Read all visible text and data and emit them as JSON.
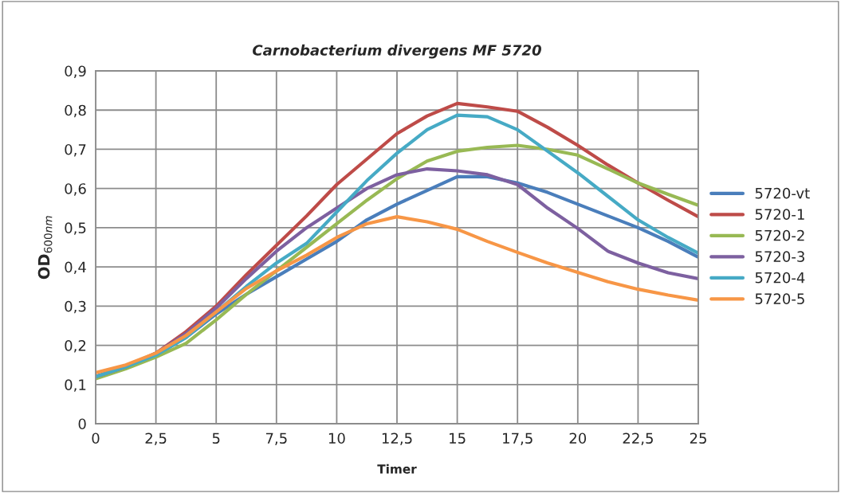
{
  "chart_data": {
    "type": "line",
    "title": "Carnobacterium divergens MF 5720",
    "xlabel": "Timer",
    "ylabel": "OD$_{600nm}$",
    "x": [
      0,
      1.25,
      2.5,
      3.75,
      5,
      6.25,
      7.5,
      8.75,
      10,
      11.25,
      12.5,
      13.75,
      15,
      16.25,
      17.5,
      18.75,
      20,
      21.25,
      22.5,
      23.75,
      25
    ],
    "series": [
      {
        "name": "5720-vt",
        "color": "#4a7ebb",
        "values": [
          0.12,
          0.145,
          0.175,
          0.22,
          0.28,
          0.33,
          0.375,
          0.42,
          0.465,
          0.52,
          0.56,
          0.595,
          0.63,
          0.63,
          0.614,
          0.59,
          0.56,
          0.53,
          0.5,
          0.465,
          0.425
        ]
      },
      {
        "name": "5720-1",
        "color": "#be4b48",
        "values": [
          0.12,
          0.145,
          0.18,
          0.235,
          0.3,
          0.38,
          0.455,
          0.53,
          0.61,
          0.675,
          0.74,
          0.785,
          0.817,
          0.808,
          0.797,
          0.756,
          0.71,
          0.66,
          0.614,
          0.57,
          0.528
        ]
      },
      {
        "name": "5720-2",
        "color": "#98b954",
        "values": [
          0.115,
          0.14,
          0.17,
          0.205,
          0.265,
          0.33,
          0.39,
          0.45,
          0.51,
          0.57,
          0.625,
          0.67,
          0.695,
          0.705,
          0.71,
          0.7,
          0.685,
          0.65,
          0.614,
          0.585,
          0.557
        ]
      },
      {
        "name": "5720-3",
        "color": "#7d60a0",
        "values": [
          0.12,
          0.145,
          0.18,
          0.23,
          0.295,
          0.37,
          0.44,
          0.5,
          0.55,
          0.6,
          0.635,
          0.65,
          0.645,
          0.635,
          0.61,
          0.55,
          0.498,
          0.44,
          0.41,
          0.385,
          0.37
        ]
      },
      {
        "name": "5720-4",
        "color": "#46aac5",
        "values": [
          0.12,
          0.145,
          0.175,
          0.22,
          0.285,
          0.35,
          0.41,
          0.46,
          0.54,
          0.62,
          0.69,
          0.75,
          0.787,
          0.783,
          0.75,
          0.695,
          0.64,
          0.58,
          0.52,
          0.475,
          0.435
        ]
      },
      {
        "name": "5720-5",
        "color": "#f79646",
        "values": [
          0.13,
          0.15,
          0.18,
          0.225,
          0.285,
          0.345,
          0.39,
          0.43,
          0.475,
          0.51,
          0.528,
          0.515,
          0.496,
          0.465,
          0.437,
          0.41,
          0.386,
          0.362,
          0.343,
          0.328,
          0.315
        ]
      }
    ],
    "xlim": [
      0,
      25
    ],
    "xticks": [
      0,
      {
        "value": 2.5,
        "label": "2,5"
      },
      5,
      {
        "value": 7.5,
        "label": "7,5"
      },
      10,
      {
        "value": 12.5,
        "label": "12,5"
      },
      15,
      {
        "value": 17.5,
        "label": "17,5"
      },
      20,
      {
        "value": 22.5,
        "label": "22,5"
      },
      25
    ],
    "ylim": [
      0,
      0.9
    ],
    "yticks": [
      0,
      {
        "value": 0.1,
        "label": "0,1"
      },
      {
        "value": 0.2,
        "label": "0,2"
      },
      {
        "value": 0.3,
        "label": "0,3"
      },
      {
        "value": 0.4,
        "label": "0,4"
      },
      {
        "value": 0.5,
        "label": "0,5"
      },
      {
        "value": 0.6,
        "label": "0,6"
      },
      {
        "value": 0.7,
        "label": "0,7"
      },
      {
        "value": 0.8,
        "label": "0,8"
      },
      {
        "value": 0.9,
        "label": "0,9"
      }
    ],
    "grid": true,
    "legend": "right",
    "marker": "none",
    "line_style": "solid"
  }
}
